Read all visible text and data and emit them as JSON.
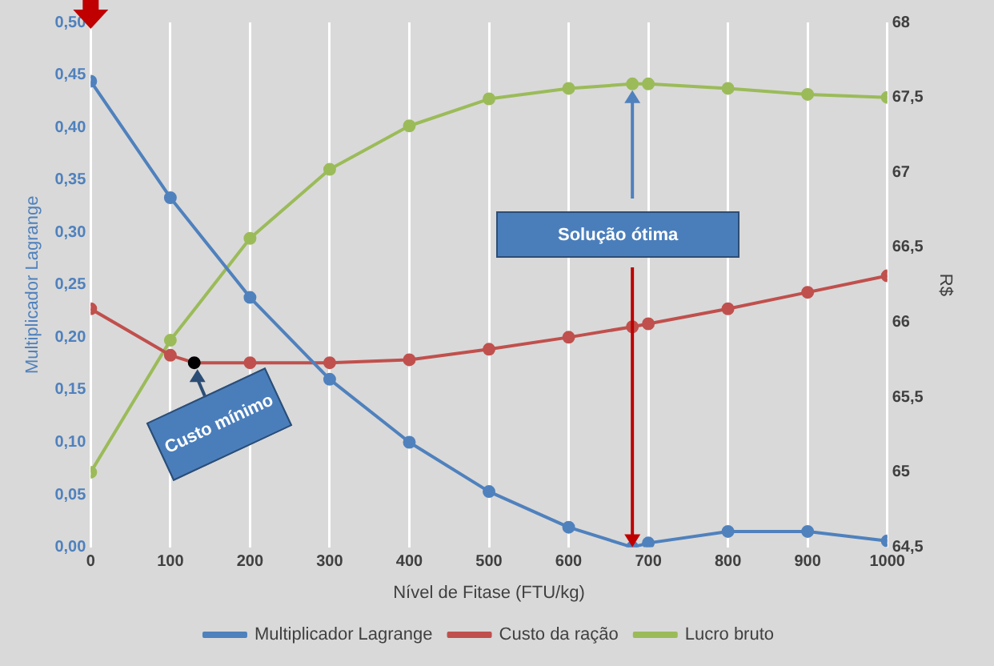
{
  "chart_data": {
    "type": "line",
    "xlabel": "Nível de Fitase (FTU/kg)",
    "ylabel": "Multiplicador Lagrange",
    "y2label": "R$",
    "xlim": [
      0,
      1000
    ],
    "xticks": [
      0,
      100,
      200,
      300,
      400,
      500,
      600,
      700,
      800,
      900,
      1000
    ],
    "ylim": [
      0,
      0.5
    ],
    "yticks": [
      {
        "value": 0,
        "label": "0,00"
      },
      {
        "value": 0.05,
        "label": "0,05"
      },
      {
        "value": 0.1,
        "label": "0,10"
      },
      {
        "value": 0.15,
        "label": "0,15"
      },
      {
        "value": 0.2,
        "label": "0,20"
      },
      {
        "value": 0.25,
        "label": "0,25"
      },
      {
        "value": 0.3,
        "label": "0,30"
      },
      {
        "value": 0.35,
        "label": "0,35"
      },
      {
        "value": 0.4,
        "label": "0,40"
      },
      {
        "value": 0.45,
        "label": "0,45"
      },
      {
        "value": 0.5,
        "label": "0,50"
      }
    ],
    "y2lim": [
      64.5,
      68
    ],
    "y2ticks": [
      {
        "value": 64.5,
        "label": "64,5"
      },
      65,
      {
        "value": 65.5,
        "label": "65,5"
      },
      66,
      {
        "value": 66.5,
        "label": "66,5"
      },
      67,
      {
        "value": 67.5,
        "label": "67,5"
      },
      68
    ],
    "grid": "x",
    "legend": "bottom",
    "marker": "circle",
    "line_style": "solid",
    "series": [
      {
        "name": "Multiplicador Lagrange",
        "color": "#4f81bd",
        "x": [
          0,
          100,
          200,
          300,
          400,
          500,
          600,
          680,
          700,
          800,
          900,
          1000
        ],
        "values": [
          0.444,
          0.333,
          0.238,
          0.16,
          0.1,
          0.053,
          0.019,
          0,
          0.004,
          0.015,
          0.015,
          0.006
        ]
      },
      {
        "name": "Custo da ração",
        "color": "#c0504d",
        "axis": "y2",
        "x": [
          0,
          100,
          130,
          200,
          300,
          400,
          500,
          600,
          680,
          700,
          800,
          900,
          1000
        ],
        "values": [
          66.09,
          65.78,
          65.73,
          65.73,
          65.73,
          65.75,
          65.82,
          65.9,
          65.97,
          65.99,
          66.09,
          66.2,
          66.31
        ],
        "colors": [
          "#c0504d",
          "#c0504d",
          "#000000",
          "#c0504d",
          "#c0504d",
          "#c0504d",
          "#c0504d",
          "#c0504d",
          "#c0504d",
          "#c0504d",
          "#c0504d",
          "#c0504d",
          "#c0504d"
        ]
      },
      {
        "name": "Lucro bruto",
        "color": "#9bbb59",
        "axis": "y2",
        "x": [
          0,
          100,
          200,
          300,
          400,
          500,
          600,
          680,
          700,
          800,
          900,
          1000
        ],
        "values": [
          65.0,
          65.88,
          66.56,
          67.02,
          67.31,
          67.49,
          67.56,
          67.59,
          67.59,
          67.56,
          67.52,
          67.5
        ]
      }
    ],
    "annotations": [
      "Solução ótima",
      "Custo mínimo"
    ]
  }
}
